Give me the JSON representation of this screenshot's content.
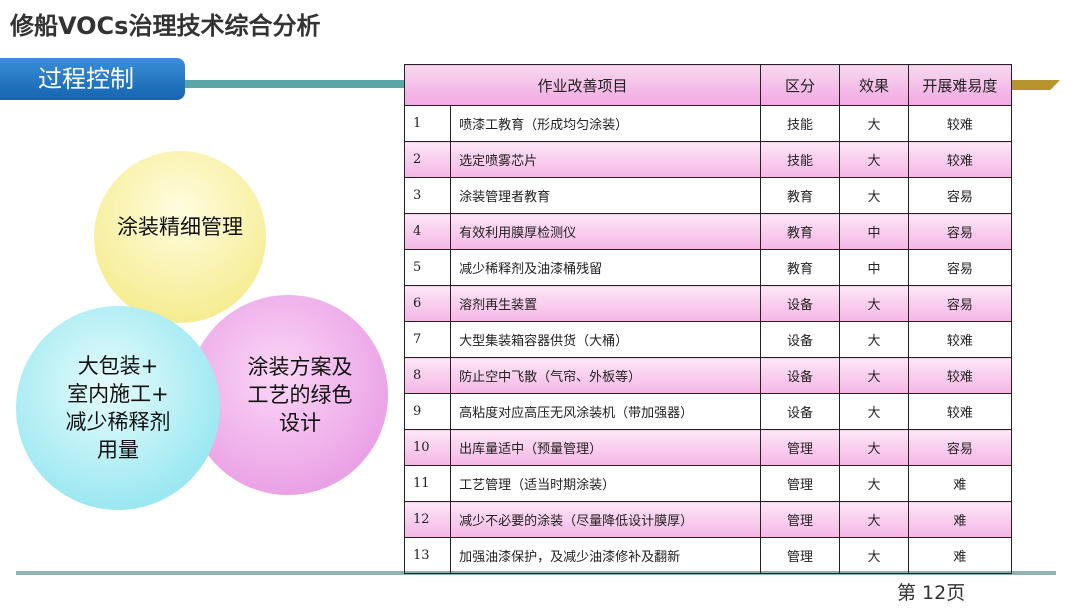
{
  "header": {
    "title": "修船VOCs治理技术综合分析",
    "section": "过程控制"
  },
  "circles": [
    {
      "lines": [
        "涂装精细管理"
      ]
    },
    {
      "lines": [
        "大包装+",
        "室内施工+",
        "减少稀释剂",
        "用量"
      ]
    },
    {
      "lines": [
        "涂装方案及",
        "工艺的绿色",
        "设计"
      ]
    }
  ],
  "table": {
    "columns": [
      "作业改善项目",
      "区分",
      "效果",
      "开展难易度"
    ],
    "rows": [
      [
        "1",
        "喷漆工教育（形成均匀涂装）",
        "技能",
        "大",
        "较难"
      ],
      [
        "2",
        "选定喷雾芯片",
        "技能",
        "大",
        "较难"
      ],
      [
        "3",
        "涂装管理者教育",
        "教育",
        "大",
        "容易"
      ],
      [
        "4",
        "有效利用膜厚检测仪",
        "教育",
        "中",
        "容易"
      ],
      [
        "5",
        "减少稀释剂及油漆桶残留",
        "教育",
        "中",
        "容易"
      ],
      [
        "6",
        "溶剂再生装置",
        "设备",
        "大",
        "容易"
      ],
      [
        "7",
        "大型集装箱容器供货（大桶）",
        "设备",
        "大",
        "较难"
      ],
      [
        "8",
        "防止空中飞散（气帘、外板等）",
        "设备",
        "大",
        "较难"
      ],
      [
        "9",
        "高粘度对应高压无风涂装机（带加强器）",
        "设备",
        "大",
        "较难"
      ],
      [
        "10",
        "出库量适中（预量管理）",
        "管理",
        "大",
        "容易"
      ],
      [
        "11",
        "工艺管理（适当时期涂装）",
        "管理",
        "大",
        "难"
      ],
      [
        "12",
        "减少不必要的涂装（尽量降低设计膜厚）",
        "管理",
        "大",
        "难"
      ],
      [
        "13",
        "加强油漆保护，及减少油漆修补及翻新",
        "管理",
        "大",
        "难"
      ]
    ]
  },
  "footer": {
    "page": "第 12页"
  }
}
